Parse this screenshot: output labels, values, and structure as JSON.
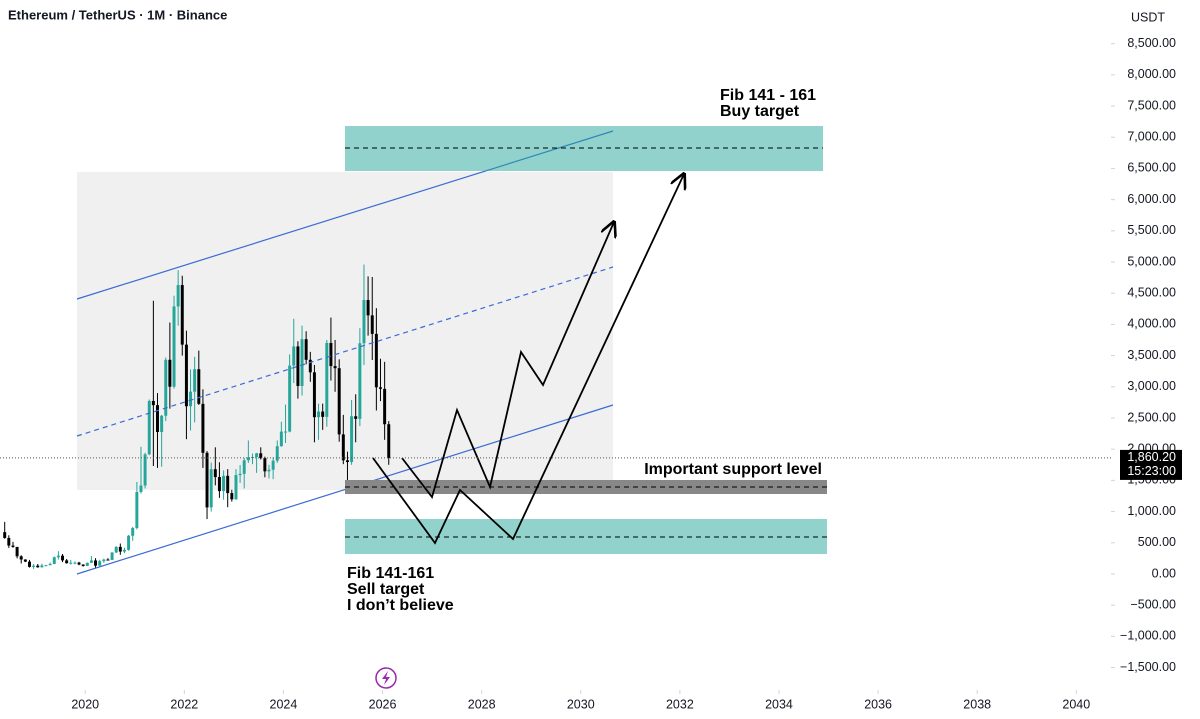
{
  "header": {
    "title": "Ethereum / TetherUS · 1M · Binance"
  },
  "chart_data": {
    "type": "candlestick",
    "y_unit": "USDT",
    "up_color": "#26a69a",
    "down_color": "#000000",
    "xlim": [
      2018.28,
      2040.7
    ],
    "xticks": [
      2020,
      2022,
      2024,
      2026,
      2028,
      2030,
      2032,
      2034,
      2036,
      2038,
      2040
    ],
    "ylim": [
      -1860,
      9200
    ],
    "yticks": [
      {
        "value": -1500,
        "label": "−1,500.00"
      },
      {
        "value": -1000,
        "label": "−1,000.00"
      },
      {
        "value": -500,
        "label": "−500.00"
      },
      {
        "value": 0,
        "label": "0.00"
      },
      {
        "value": 500,
        "label": "500.00"
      },
      {
        "value": 1000,
        "label": "1,000.00"
      },
      {
        "value": 1500,
        "label": "1,500.00"
      },
      {
        "value": 2000,
        "label": "2,000.00"
      },
      {
        "value": 2500,
        "label": "2,500.00"
      },
      {
        "value": 3000,
        "label": "3,000.00"
      },
      {
        "value": 3500,
        "label": "3,500.00"
      },
      {
        "value": 4000,
        "label": "4,000.00"
      },
      {
        "value": 4500,
        "label": "4,500.00"
      },
      {
        "value": 5000,
        "label": "5,000.00"
      },
      {
        "value": 5500,
        "label": "5,500.00"
      },
      {
        "value": 6000,
        "label": "6,000.00"
      },
      {
        "value": 6500,
        "label": "6,500.00"
      },
      {
        "value": 7000,
        "label": "7,000.00"
      },
      {
        "value": 7500,
        "label": "7,500.00"
      },
      {
        "value": 8000,
        "label": "8,000.00"
      },
      {
        "value": 8500,
        "label": "8,500.00"
      }
    ],
    "last_price": {
      "value": 1860.2,
      "label": "1,860.20"
    },
    "countdown": "15:23:00",
    "x": [
      2018.375,
      2018.458,
      2018.542,
      2018.625,
      2018.708,
      2018.792,
      2018.875,
      2018.958,
      2019.042,
      2019.125,
      2019.208,
      2019.292,
      2019.375,
      2019.458,
      2019.542,
      2019.625,
      2019.708,
      2019.792,
      2019.875,
      2019.958,
      2020.042,
      2020.125,
      2020.208,
      2020.292,
      2020.375,
      2020.458,
      2020.542,
      2020.625,
      2020.708,
      2020.792,
      2020.875,
      2020.958,
      2021.042,
      2021.125,
      2021.208,
      2021.292,
      2021.375,
      2021.458,
      2021.542,
      2021.625,
      2021.708,
      2021.792,
      2021.875,
      2021.958,
      2022.042,
      2022.125,
      2022.208,
      2022.292,
      2022.375,
      2022.458,
      2022.542,
      2022.625,
      2022.708,
      2022.792,
      2022.875,
      2022.958,
      2023.042,
      2023.125,
      2023.208,
      2023.292,
      2023.375,
      2023.458,
      2023.542,
      2023.625,
      2023.708,
      2023.792,
      2023.875,
      2023.958,
      2024.042,
      2024.125,
      2024.208,
      2024.292,
      2024.375,
      2024.458,
      2024.542,
      2024.625,
      2024.708,
      2024.792,
      2024.875,
      2024.958,
      2025.042,
      2025.125,
      2025.208,
      2025.292,
      2025.375,
      2025.458,
      2025.542,
      2025.625,
      2025.708,
      2025.792,
      2025.875,
      2025.958,
      2026.042,
      2026.125
    ],
    "open": [
      670,
      577,
      455,
      433,
      283,
      232,
      198,
      113,
      133,
      107,
      136,
      141,
      160,
      268,
      293,
      218,
      172,
      180,
      182,
      151,
      129,
      179,
      217,
      133,
      206,
      231,
      225,
      345,
      434,
      359,
      386,
      612,
      737,
      1314,
      1417,
      1918,
      2773,
      2706,
      2275,
      2536,
      3433,
      3001,
      4288,
      4631,
      3676,
      2688,
      2922,
      3282,
      2727,
      1942,
      1067,
      1679,
      1553,
      1328,
      1573,
      1296,
      1196,
      1585,
      1605,
      1822,
      1869,
      1874,
      1934,
      1857,
      1645,
      1671,
      1815,
      2048,
      2282,
      2283,
      3340,
      3647,
      3013,
      3763,
      3433,
      3232,
      2513,
      2603,
      2518,
      3703,
      3332,
      3298,
      2237,
      1822,
      1794,
      2528,
      2486,
      3698,
      4391,
      4145,
      3848,
      2992,
      2967,
      2400
    ],
    "high": [
      835,
      620,
      515,
      435,
      300,
      235,
      225,
      160,
      160,
      165,
      145,
      185,
      280,
      365,
      320,
      240,
      225,
      200,
      195,
      155,
      185,
      288,
      253,
      227,
      245,
      253,
      348,
      445,
      488,
      420,
      625,
      755,
      1475,
      2040,
      1943,
      2797,
      4380,
      2900,
      2550,
      3470,
      4030,
      4460,
      4870,
      4780,
      3900,
      3280,
      3480,
      3580,
      2960,
      1970,
      1785,
      2030,
      1790,
      1660,
      1680,
      1350,
      1680,
      1745,
      1860,
      2140,
      1930,
      1940,
      2030,
      1880,
      1750,
      1870,
      2140,
      2440,
      2715,
      3520,
      4090,
      3730,
      3980,
      3890,
      3560,
      3350,
      2730,
      2730,
      3750,
      4110,
      3750,
      3440,
      2550,
      1960,
      2790,
      2880,
      3940,
      4960,
      4770,
      4760,
      4260,
      3450,
      3400,
      2450
    ],
    "low": [
      565,
      418,
      420,
      250,
      168,
      190,
      102,
      82,
      100,
      102,
      125,
      140,
      158,
      230,
      190,
      165,
      150,
      155,
      140,
      117,
      127,
      178,
      86,
      130,
      177,
      216,
      223,
      335,
      308,
      334,
      373,
      532,
      714,
      1290,
      1370,
      1903,
      1730,
      1700,
      1718,
      2450,
      2650,
      2970,
      3980,
      3500,
      2160,
      2300,
      2430,
      2710,
      1700,
      880,
      1000,
      1420,
      1220,
      1190,
      1070,
      1160,
      1190,
      1460,
      1370,
      1780,
      1760,
      1620,
      1835,
      1550,
      1530,
      1520,
      1780,
      2040,
      2100,
      2270,
      3060,
      2810,
      2860,
      3360,
      3080,
      2110,
      2150,
      2310,
      2360,
      3100,
      2920,
      2120,
      1760,
      1380,
      1750,
      2110,
      2370,
      3350,
      3820,
      3430,
      2620,
      2770,
      2150,
      1750
    ],
    "close": [
      577,
      455,
      433,
      283,
      232,
      198,
      113,
      133,
      107,
      136,
      141,
      160,
      268,
      293,
      218,
      172,
      180,
      182,
      151,
      129,
      179,
      217,
      133,
      206,
      231,
      225,
      345,
      434,
      359,
      386,
      612,
      737,
      1314,
      1417,
      1918,
      2773,
      2706,
      2275,
      2536,
      3433,
      3001,
      4288,
      4631,
      3676,
      2688,
      2922,
      3282,
      2727,
      1942,
      1067,
      1679,
      1553,
      1328,
      1573,
      1296,
      1196,
      1585,
      1605,
      1822,
      1869,
      1874,
      1934,
      1857,
      1645,
      1671,
      1815,
      2048,
      2282,
      2283,
      3340,
      3647,
      3013,
      3763,
      3433,
      3232,
      2513,
      2603,
      2518,
      3703,
      3332,
      3298,
      2237,
      1822,
      1794,
      2528,
      2486,
      3698,
      4391,
      4145,
      3848,
      2992,
      2967,
      2400,
      1860.2
    ],
    "annotations": {
      "buy_zone": "Fib 141 - 161",
      "buy_label": "Buy target",
      "support": "Important support level",
      "sell_zone": "Fib 141-161",
      "sell_label": "Sell target",
      "sell_note": "I don’t believe"
    }
  }
}
